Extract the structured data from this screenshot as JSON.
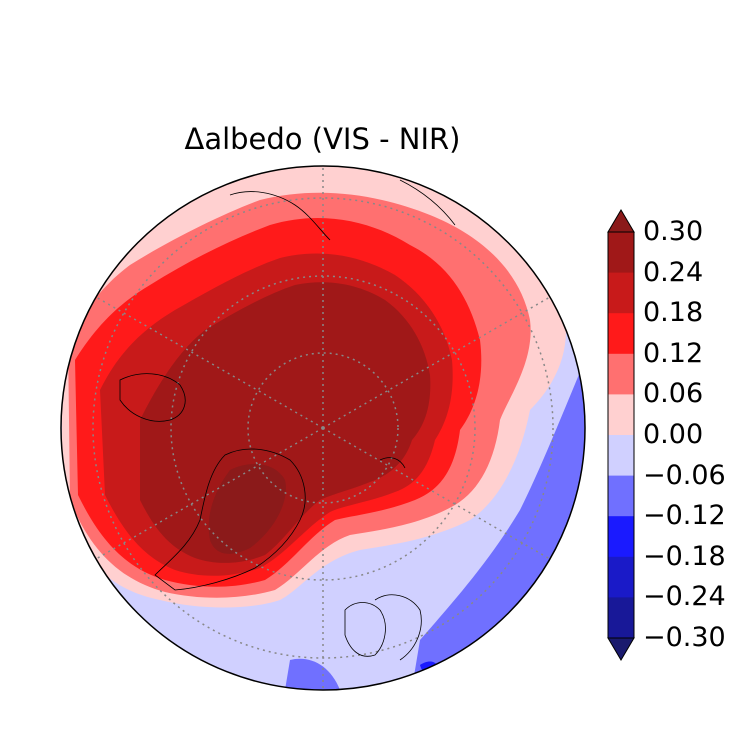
{
  "title": "Δalbedo (VIS - NIR)",
  "colorbar": {
    "ticks": [
      "0.30",
      "0.24",
      "0.18",
      "0.12",
      "0.06",
      "0.00",
      "−0.06",
      "−0.12",
      "−0.18",
      "−0.24",
      "−0.30"
    ],
    "tick_values": [
      0.3,
      0.24,
      0.18,
      0.12,
      0.06,
      0.0,
      -0.06,
      -0.12,
      -0.18,
      -0.24,
      -0.3
    ],
    "colors_top_to_bottom": [
      "#8b1a1a",
      "#a01818",
      "#c81a1a",
      "#ff1a1a",
      "#ff7070",
      "#ffd0d0",
      "#d0d0ff",
      "#7070ff",
      "#1a1aff",
      "#1a1ac8",
      "#181898",
      "#1a1a6e"
    ],
    "extend": "both"
  },
  "map": {
    "projection": "north-polar-stereographic",
    "graticule": "dotted",
    "coastlines": true
  }
}
